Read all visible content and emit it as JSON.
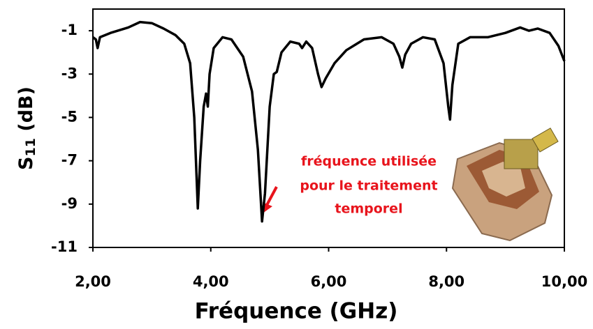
{
  "chart_data": {
    "type": "line",
    "x_label": "Fréquence (GHz)",
    "y_label_parts": [
      "S",
      "11",
      " (dB)"
    ],
    "annotation": [
      "fréquence utilisée",
      "pour le traitement",
      "temporel"
    ],
    "xlim": [
      2,
      10
    ],
    "ylim": [
      -11,
      0
    ],
    "xticks": [
      {
        "value": 2,
        "label": "2,00"
      },
      {
        "value": 4,
        "label": "4,00"
      },
      {
        "value": 6,
        "label": "6,00"
      },
      {
        "value": 8,
        "label": "8,00"
      },
      {
        "value": 10,
        "label": "10,00"
      }
    ],
    "yticks": [
      -1,
      -3,
      -5,
      -7,
      -9,
      -11
    ],
    "grid": false,
    "x": [
      2.0,
      2.05,
      2.08,
      2.12,
      2.3,
      2.6,
      2.8,
      3.0,
      3.2,
      3.4,
      3.55,
      3.65,
      3.72,
      3.78,
      3.82,
      3.88,
      3.92,
      3.95,
      3.98,
      4.05,
      4.2,
      4.35,
      4.55,
      4.7,
      4.8,
      4.87,
      4.92,
      5.0,
      5.07,
      5.12,
      5.2,
      5.35,
      5.5,
      5.55,
      5.62,
      5.72,
      5.82,
      5.88,
      5.95,
      6.1,
      6.3,
      6.6,
      6.9,
      7.1,
      7.2,
      7.25,
      7.3,
      7.4,
      7.6,
      7.8,
      7.95,
      8.03,
      8.06,
      8.1,
      8.2,
      8.4,
      8.7,
      9.0,
      9.25,
      9.4,
      9.55,
      9.75,
      9.9,
      10.0
    ],
    "series": [
      {
        "color": "#000000",
        "values": [
          -1.3,
          -1.4,
          -1.8,
          -1.3,
          -1.1,
          -0.85,
          -0.6,
          -0.65,
          -0.9,
          -1.2,
          -1.6,
          -2.5,
          -5,
          -9.2,
          -7,
          -4.5,
          -3.9,
          -4.5,
          -3,
          -1.8,
          -1.3,
          -1.4,
          -2.2,
          -3.8,
          -6.5,
          -9.8,
          -8.5,
          -4.5,
          -3.0,
          -2.9,
          -2,
          -1.5,
          -1.6,
          -1.8,
          -1.5,
          -1.8,
          -3,
          -3.6,
          -3.2,
          -2.5,
          -1.9,
          -1.4,
          -1.3,
          -1.6,
          -2.2,
          -2.7,
          -2.1,
          -1.6,
          -1.3,
          -1.4,
          -2.5,
          -4.5,
          -5.1,
          -3.5,
          -1.6,
          -1.3,
          -1.3,
          -1.1,
          -0.85,
          -1.0,
          -0.9,
          -1.1,
          -1.7,
          -2.4
        ]
      }
    ]
  }
}
